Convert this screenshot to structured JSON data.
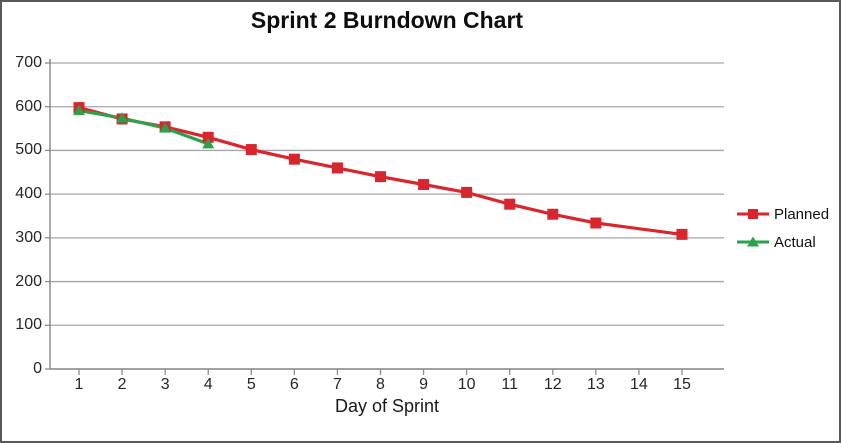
{
  "chart_data": {
    "type": "line",
    "title": "Sprint 2 Burndown Chart",
    "xlabel": "Day of Sprint",
    "ylabel": "",
    "x": [
      1,
      2,
      3,
      4,
      5,
      6,
      7,
      8,
      9,
      10,
      11,
      12,
      13,
      14,
      15
    ],
    "ylim": [
      0,
      700
    ],
    "y_ticks": [
      0,
      100,
      200,
      300,
      400,
      500,
      600,
      700
    ],
    "grid": true,
    "legend_position": "right",
    "series": [
      {
        "name": "Planned",
        "color": "#d9262c",
        "marker": "square",
        "values": [
          598,
          572,
          554,
          530,
          502,
          480,
          460,
          440,
          422,
          404,
          377,
          354,
          334,
          null,
          308
        ]
      },
      {
        "name": "Actual",
        "color": "#2ba14b",
        "marker": "triangle",
        "values": [
          591,
          574,
          551,
          515,
          null,
          null,
          null,
          null,
          null,
          null,
          null,
          null,
          null,
          null,
          null
        ]
      }
    ]
  },
  "colors": {
    "grid": "#a6a6a6",
    "axis": "#8c8c8c",
    "text": "#262626",
    "border": "#58595b",
    "background": "#ffffff"
  }
}
